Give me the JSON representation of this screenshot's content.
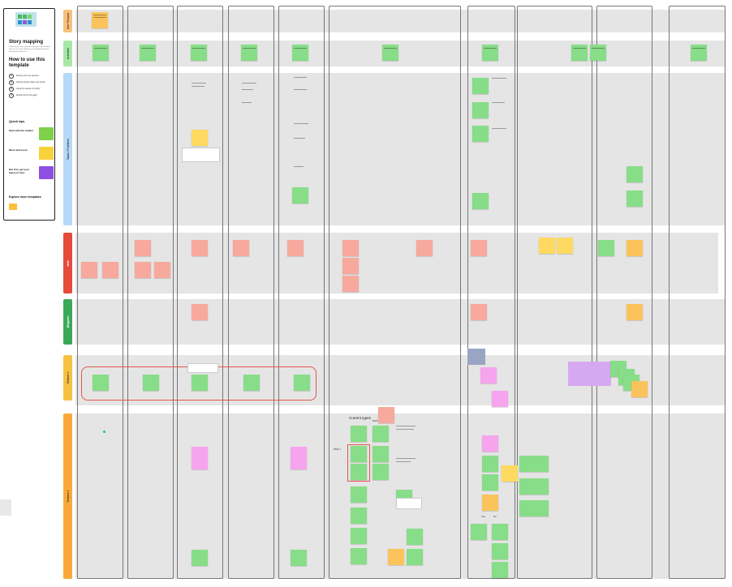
{
  "panel": {
    "title": "Story mapping",
    "intro": "Capture your users journey so that you can visualize when it uses your software to accomplish key tasks and prioritize features.",
    "how_title": "How to use this template",
    "steps": [
      "Identify your user persona",
      "Add the activity, tasks, and stories",
      "Group by release or priority",
      "Identify and fix any gaps"
    ],
    "quick_tips": "Quick tips",
    "tip1_title": "Start with the toolbar",
    "tip2_title": "Move and zoom",
    "tip3_title": "But first, get your layers in here",
    "explore": "Explore more templates"
  },
  "rows": [
    {
      "label": "User Persona",
      "color": "#f9c07a"
    },
    {
      "label": "Activities",
      "color": "#a7e8a7"
    },
    {
      "label": "Tasks / Problems",
      "color": "#b6d9f7"
    },
    {
      "label": "Walk",
      "color": "#e64a3b"
    },
    {
      "label": "Mitigation",
      "color": "#3aa858"
    },
    {
      "label": "Release 1",
      "color": "#f6c141"
    },
    {
      "label": "Release 2",
      "color": "#f8a93a"
    }
  ],
  "board": {
    "current_types": "Current types",
    "mvp": "MVP",
    "pmp": "PMP 1",
    "yes": "Yes",
    "no": "No"
  }
}
